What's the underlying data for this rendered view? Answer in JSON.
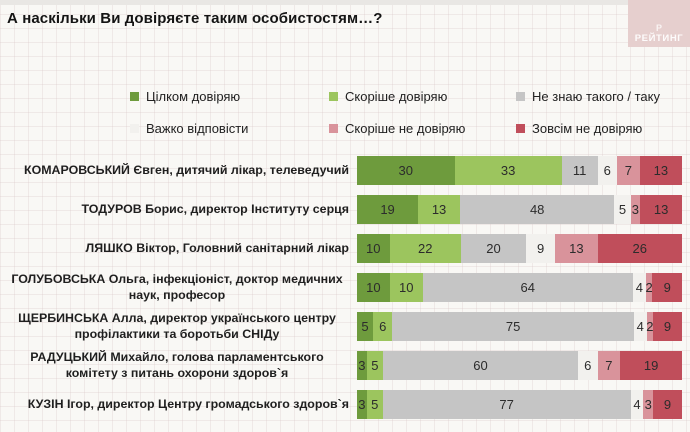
{
  "title": "А наскільки Ви довіряєте таким особистостям…?",
  "logo": {
    "text": "РЕЙТИНГ",
    "mark": "Р",
    "bg_color": "#e6cfce"
  },
  "colors": {
    "background": "#f9f8f5",
    "fully_trust": "#6e9b3d",
    "rather_trust": "#9cc55e",
    "dont_know": "#c5c5c5",
    "hard_to_answer": "#f2f1ee",
    "rather_distrust": "#d9939b",
    "fully_distrust": "#c04e5b"
  },
  "chart_data": {
    "type": "bar",
    "stacked": true,
    "orientation": "horizontal",
    "unit": "%",
    "title": "А наскільки Ви довіряєте таким особистостям…?",
    "legend_position": "top",
    "grid": false,
    "xlim": [
      0,
      100
    ],
    "categories": [
      "КОМАРОВСЬКИЙ Євген, дитячий лікар, телеведучий",
      "ТОДУРОВ Борис, директор Інституту серця",
      "ЛЯШКО Віктор, Головний санітарний лікар",
      "ГОЛУБОВСЬКА Ольга, інфекціоніст, доктор медичних наук, професор",
      "ЩЕРБИНСЬКА Алла, директор українського центру профілактики та боротьби СНІДу",
      "РАДУЦЬКИЙ Михайло, голова парламентського комітету з питань охорони здоров`я",
      "КУЗІН Ігор, директор Центру громадського здоров`я"
    ],
    "series": [
      {
        "name": "Цілком довіряю",
        "color": "#6e9b3d",
        "values": [
          30,
          19,
          10,
          10,
          5,
          3,
          3
        ]
      },
      {
        "name": "Скоріше довіряю",
        "color": "#9cc55e",
        "values": [
          33,
          13,
          22,
          10,
          6,
          5,
          5
        ]
      },
      {
        "name": "Не знаю такого / таку",
        "color": "#c5c5c5",
        "values": [
          11,
          48,
          20,
          64,
          75,
          60,
          77
        ]
      },
      {
        "name": "Важко відповісти",
        "color": "#f2f1ee",
        "values": [
          6,
          5,
          9,
          4,
          4,
          6,
          4
        ]
      },
      {
        "name": "Скоріше не довіряю",
        "color": "#d9939b",
        "values": [
          7,
          3,
          13,
          2,
          2,
          7,
          3
        ]
      },
      {
        "name": "Зовсім не довіряю",
        "color": "#c04e5b",
        "values": [
          13,
          13,
          26,
          9,
          9,
          19,
          9
        ]
      }
    ]
  }
}
